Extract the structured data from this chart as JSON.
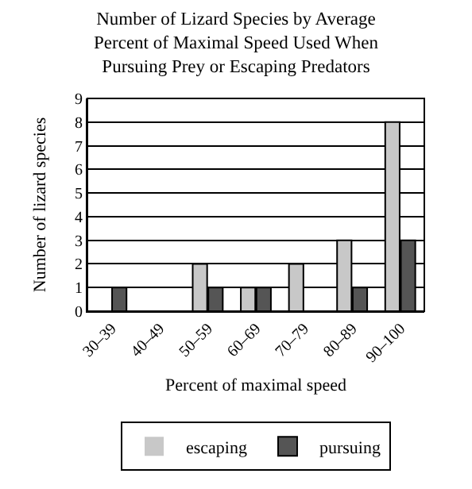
{
  "chart_data": {
    "type": "bar",
    "title": "Number of Lizard Species by Average\nPercent of Maximal Speed Used When\nPursuing Prey or Escaping Predators",
    "xlabel": "Percent of maximal speed",
    "ylabel": "Number of lizard species",
    "categories": [
      "30–39",
      "40–49",
      "50–59",
      "60–69",
      "70–79",
      "80–89",
      "90–100"
    ],
    "series": [
      {
        "name": "escaping",
        "color": "#c8c8c8",
        "values": [
          0,
          0,
          2,
          1,
          2,
          3,
          8
        ]
      },
      {
        "name": "pursuing",
        "color": "#555555",
        "values": [
          1,
          0,
          1,
          1,
          0,
          1,
          3
        ]
      }
    ],
    "ylim": [
      0,
      9
    ],
    "yticks": [
      0,
      1,
      2,
      3,
      4,
      5,
      6,
      7,
      8,
      9
    ],
    "grid": "y",
    "legend": "bottom"
  }
}
